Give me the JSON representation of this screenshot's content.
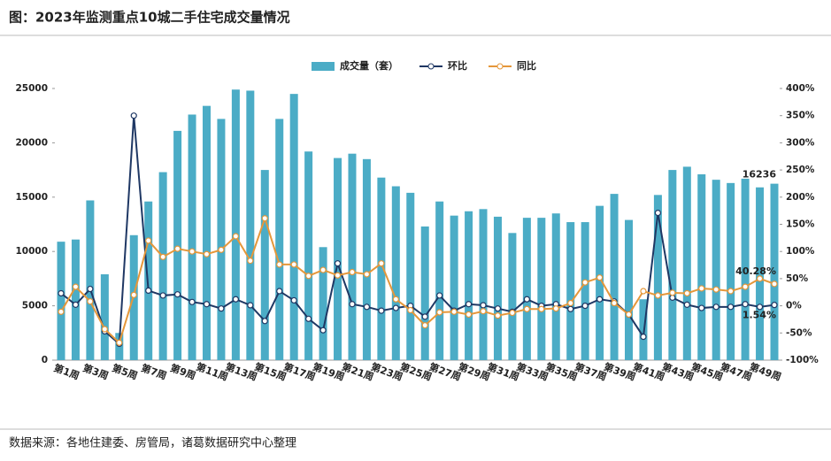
{
  "chart_data": {
    "type": "bar_line",
    "title": "图：2023年监测重点10城二手住宅成交量情况",
    "source": "数据来源：各地住建委、房管局，诸葛数据研究中心整理",
    "categories": [
      "第1周",
      null,
      "第3周",
      null,
      "第5周",
      null,
      "第7周",
      null,
      "第9周",
      null,
      "第11周",
      null,
      "第13周",
      null,
      "第15周",
      null,
      "第17周",
      null,
      "第19周",
      null,
      "第21周",
      null,
      "第23周",
      null,
      "第25周",
      null,
      "第27周",
      null,
      "第29周",
      null,
      "第31周",
      null,
      "第33周",
      null,
      "第35周",
      null,
      "第37周",
      null,
      "第39周",
      null,
      "第41周",
      null,
      "第43周",
      null,
      "第45周",
      null,
      "第47周",
      null,
      "第49周",
      null
    ],
    "series": [
      {
        "name": "成交量（套）",
        "kind": "bar",
        "color": "#4bacc6",
        "values": [
          10900,
          11100,
          14700,
          7900,
          2500,
          11500,
          14600,
          17300,
          21100,
          22600,
          23400,
          22200,
          24900,
          24800,
          17500,
          22200,
          24500,
          19200,
          10400,
          18600,
          19000,
          18500,
          16800,
          16000,
          15400,
          12300,
          14600,
          13300,
          13700,
          13900,
          13200,
          11700,
          13100,
          13100,
          13500,
          12700,
          12700,
          14200,
          15300,
          12900,
          5600,
          15200,
          17500,
          17800,
          17100,
          16600,
          16300,
          16700,
          15900,
          16236
        ],
        "value_labels": [
          null,
          null,
          null,
          null,
          null,
          null,
          null,
          null,
          null,
          null,
          null,
          null,
          null,
          null,
          null,
          null,
          null,
          null,
          null,
          null,
          null,
          null,
          null,
          null,
          null,
          null,
          null,
          null,
          null,
          null,
          null,
          null,
          null,
          null,
          null,
          null,
          null,
          null,
          null,
          null,
          null,
          null,
          null,
          null,
          null,
          null,
          null,
          null,
          null,
          "16236"
        ]
      },
      {
        "name": "环比",
        "kind": "line",
        "axis": "y2",
        "color": "#1f3864",
        "values": [
          23,
          2,
          31,
          -47,
          -70,
          350,
          28,
          19,
          21,
          7,
          3,
          -5,
          12,
          1,
          -28,
          27,
          10,
          -24,
          -45,
          78,
          3,
          -2,
          -9,
          -4,
          0,
          -20,
          19,
          -9,
          3,
          1,
          -5,
          -11,
          12,
          0,
          3,
          -6,
          0,
          12,
          8,
          -16,
          -57,
          171,
          15,
          2,
          -4,
          -2,
          -2,
          3,
          -2,
          1.54
        ],
        "value_labels": [
          null,
          null,
          null,
          null,
          null,
          null,
          null,
          null,
          null,
          null,
          null,
          null,
          null,
          null,
          null,
          null,
          null,
          null,
          null,
          null,
          null,
          null,
          null,
          null,
          null,
          null,
          null,
          null,
          null,
          null,
          null,
          null,
          null,
          null,
          null,
          null,
          null,
          null,
          null,
          null,
          null,
          null,
          null,
          null,
          null,
          null,
          null,
          null,
          null,
          "1.54%"
        ]
      },
      {
        "name": "同比",
        "kind": "line",
        "axis": "y2",
        "color": "#e5973a",
        "values": [
          -11,
          35,
          8,
          -43,
          -68,
          20,
          120,
          90,
          105,
          100,
          95,
          103,
          128,
          83,
          161,
          76,
          76,
          55,
          66,
          56,
          62,
          58,
          78,
          12,
          -8,
          -36,
          -12,
          -11,
          -16,
          -10,
          -18,
          -13,
          -6,
          -6,
          -5,
          5,
          43,
          52,
          5,
          -16,
          27,
          19,
          24,
          23,
          32,
          30,
          27,
          35,
          50,
          40.28
        ],
        "value_labels": [
          null,
          null,
          null,
          null,
          null,
          null,
          null,
          null,
          null,
          null,
          null,
          null,
          null,
          null,
          null,
          null,
          null,
          null,
          null,
          null,
          null,
          null,
          null,
          null,
          null,
          null,
          null,
          null,
          null,
          null,
          null,
          null,
          null,
          null,
          null,
          null,
          null,
          null,
          null,
          null,
          null,
          null,
          null,
          null,
          null,
          null,
          null,
          null,
          null,
          "40.28%"
        ]
      }
    ],
    "ylim": [
      0,
      25000
    ],
    "yticks": [
      0,
      5000,
      10000,
      15000,
      20000,
      25000
    ],
    "y2lim": [
      -100,
      400
    ],
    "y2ticks": [
      {
        "value": -100,
        "label": "-100%"
      },
      {
        "value": -50,
        "label": "-50%"
      },
      {
        "value": 0,
        "label": "0%"
      },
      {
        "value": 50,
        "label": "50%"
      },
      {
        "value": 100,
        "label": "100%"
      },
      {
        "value": 150,
        "label": "150%"
      },
      {
        "value": 200,
        "label": "200%"
      },
      {
        "value": 250,
        "label": "250%"
      },
      {
        "value": 300,
        "label": "300%"
      },
      {
        "value": 350,
        "label": "350%"
      },
      {
        "value": 400,
        "label": "400%"
      }
    ],
    "legend": "top"
  }
}
